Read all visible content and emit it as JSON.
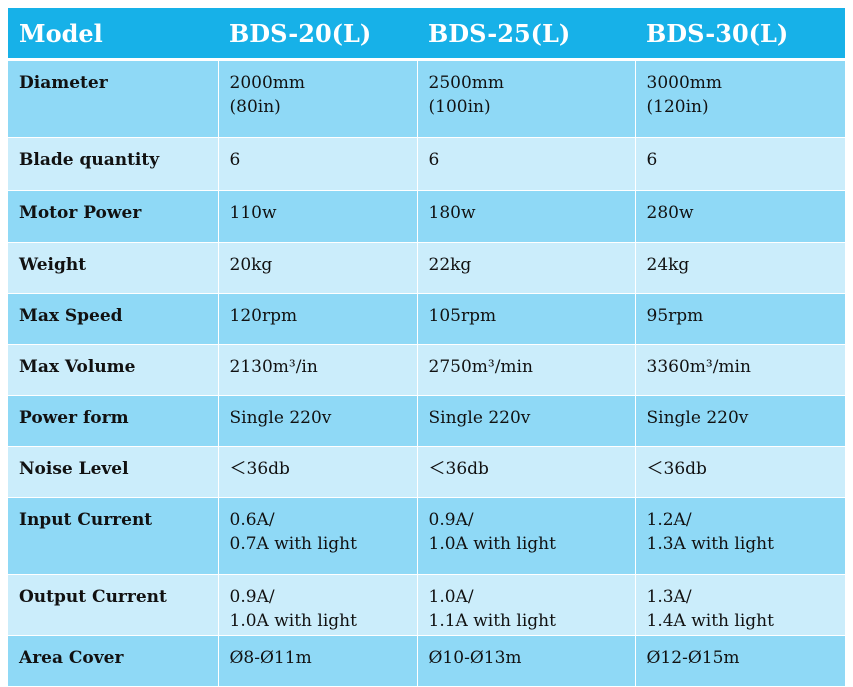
{
  "table": {
    "headers": [
      "Model",
      "BDS-20(L)",
      "BDS-25(L)",
      "BDS-30(L)"
    ],
    "rows": [
      {
        "label": "Diameter",
        "values": [
          "2000mm\n(80in)",
          "2500mm\n(100in)",
          "3000mm\n(120in)"
        ]
      },
      {
        "label": "Blade quantity",
        "values": [
          "6",
          "6",
          "6"
        ]
      },
      {
        "label": "Motor Power",
        "values": [
          "110w",
          "180w",
          "280w"
        ]
      },
      {
        "label": "Weight",
        "values": [
          "20kg",
          "22kg",
          "24kg"
        ]
      },
      {
        "label": "Max Speed",
        "values": [
          "120rpm",
          "105rpm",
          "95rpm"
        ]
      },
      {
        "label": "Max Volume",
        "values": [
          "2130m³/in",
          "2750m³/min",
          "3360m³/min"
        ]
      },
      {
        "label": "Power form",
        "values": [
          "Single 220v",
          "Single 220v",
          "Single 220v"
        ]
      },
      {
        "label": "Noise Level",
        "values": [
          "＜36db",
          "＜36db",
          "＜36db"
        ]
      },
      {
        "label": "Input Current",
        "values": [
          "0.6A/\n0.7A with light",
          "0.9A/\n1.0A with light",
          "1.2A/\n1.3A with light"
        ]
      },
      {
        "label": "Output Current",
        "values": [
          "0.9A/\n1.0A with light",
          "1.0A/\n1.1A with light",
          "1.3A/\n1.4A with light"
        ]
      },
      {
        "label": "Area Cover",
        "values": [
          "Ø8-Ø11m",
          "Ø10-Ø13m",
          "Ø12-Ø15m"
        ]
      }
    ]
  },
  "colors": {
    "header_bg": "#17b1e8",
    "row_odd_bg": "#8fd9f6",
    "row_even_bg": "#cbedfb",
    "header_text": "#ffffff"
  }
}
